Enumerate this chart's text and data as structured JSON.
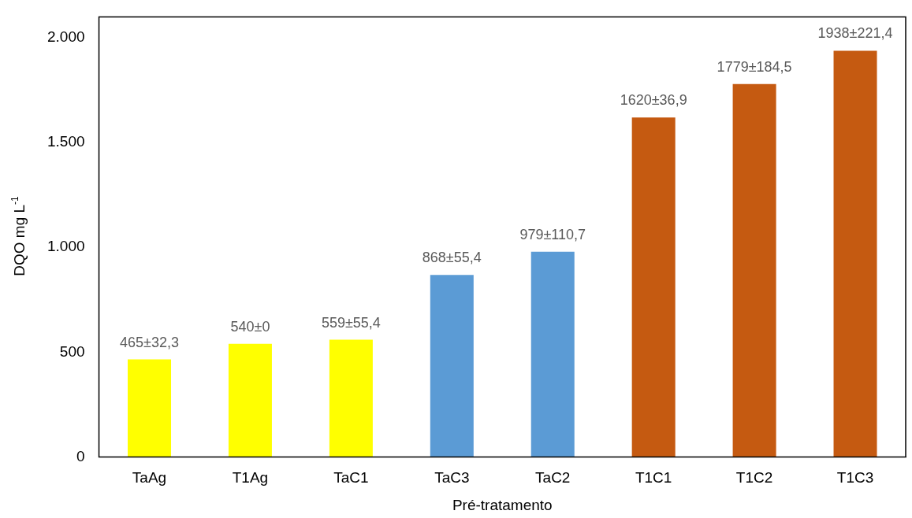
{
  "chart_data": {
    "type": "bar",
    "xlabel": "Pré-tratamento",
    "ylabel": "DQO mg L$^{-1}$",
    "categories": [
      "TaAg",
      "T1Ag",
      "TaC1",
      "TaC3",
      "TaC2",
      "T1C1",
      "T1C2",
      "T1C3"
    ],
    "values": [
      465,
      540,
      559,
      868,
      979,
      1620,
      1779,
      1938
    ],
    "colors": [
      "#ffff00",
      "#ffff00",
      "#ffff00",
      "#5b9bd5",
      "#5b9bd5",
      "#c55a11",
      "#c55a11",
      "#c55a11"
    ],
    "value_labels": [
      "465±32,3",
      "540±0",
      "559±55,4",
      "868±55,4",
      "979±110,7",
      "1620±36,9",
      "1779±184,5",
      "1938±221,4"
    ],
    "ylim": [
      0,
      2100
    ],
    "yticks": [
      {
        "value": 0,
        "label": "0"
      },
      {
        "value": 500,
        "label": "500"
      },
      {
        "value": 1000,
        "label": "1.000"
      },
      {
        "value": 1500,
        "label": "1.500"
      },
      {
        "value": 2000,
        "label": "2.000"
      }
    ],
    "grid": false,
    "legend": false
  }
}
